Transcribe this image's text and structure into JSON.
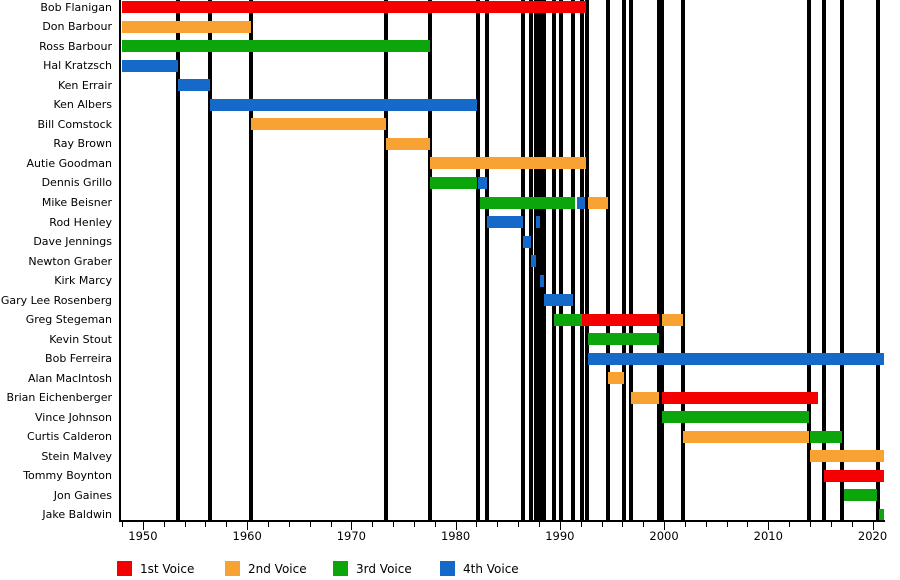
{
  "chart_data": {
    "type": "timeline",
    "description": "Band members timeline: tenure bars per member, colored by voice part, with vertical lines marking lineup changes",
    "x_axis": {
      "unit": "year",
      "plot_start": 1947.8,
      "plot_end": 2021.1,
      "major_ticks": [
        1950,
        1960,
        1970,
        1980,
        1990,
        2000,
        2010,
        2020
      ],
      "minor_tick_start": 1948,
      "minor_tick_end": 2020,
      "minor_tick_step": 2
    },
    "voice_colors": {
      "1st": "#f40000",
      "2nd": "#f7a233",
      "3rd": "#0ca60c",
      "4th": "#1569c8"
    },
    "legend": [
      {
        "label": "1st Voice",
        "voice": "1st",
        "color": "#f40000"
      },
      {
        "label": "2nd Voice",
        "voice": "2nd",
        "color": "#f7a233"
      },
      {
        "label": "3rd Voice",
        "voice": "3rd",
        "color": "#0ca60c"
      },
      {
        "label": "4th Voice",
        "voice": "4th",
        "color": "#1569c8"
      }
    ],
    "members": [
      {
        "name": "Bob Flanigan",
        "stints": [
          {
            "voice": "1st",
            "from": 1948,
            "to": 1992.5
          }
        ]
      },
      {
        "name": "Don Barbour",
        "stints": [
          {
            "voice": "2nd",
            "from": 1948,
            "to": 1960.4
          }
        ]
      },
      {
        "name": "Ross Barbour",
        "stints": [
          {
            "voice": "3rd",
            "from": 1948,
            "to": 1977.5
          }
        ]
      },
      {
        "name": "Hal Kratzsch",
        "stints": [
          {
            "voice": "4th",
            "from": 1948,
            "to": 1953.4
          }
        ]
      },
      {
        "name": "Ken Errair",
        "stints": [
          {
            "voice": "4th",
            "from": 1953.4,
            "to": 1956.4
          }
        ]
      },
      {
        "name": "Ken Albers",
        "stints": [
          {
            "voice": "4th",
            "from": 1956.4,
            "to": 1982.1
          }
        ]
      },
      {
        "name": "Bill Comstock",
        "stints": [
          {
            "voice": "2nd",
            "from": 1960.4,
            "to": 1973.3
          }
        ]
      },
      {
        "name": "Ray Brown",
        "stints": [
          {
            "voice": "2nd",
            "from": 1973.3,
            "to": 1977.5
          }
        ]
      },
      {
        "name": "Autie Goodman",
        "stints": [
          {
            "voice": "2nd",
            "from": 1977.5,
            "to": 1992.5
          }
        ]
      },
      {
        "name": "Dennis Grillo",
        "stints": [
          {
            "voice": "3rd",
            "from": 1977.5,
            "to": 1982.1
          },
          {
            "voice": "4th",
            "from": 1982.1,
            "to": 1983.0
          }
        ]
      },
      {
        "name": "Mike Beisner",
        "stints": [
          {
            "voice": "3rd",
            "from": 1982.3,
            "to": 1991.5
          },
          {
            "voice": "4th",
            "from": 1991.6,
            "to": 1992.4
          },
          {
            "voice": "2nd",
            "from": 1992.7,
            "to": 1994.6
          }
        ]
      },
      {
        "name": "Rod Henley",
        "stints": [
          {
            "voice": "4th",
            "from": 1983.0,
            "to": 1986.5
          },
          {
            "voice": "4th",
            "from": 1987.7,
            "to": 1988.1
          }
        ]
      },
      {
        "name": "Dave Jennings",
        "stints": [
          {
            "voice": "4th",
            "from": 1986.5,
            "to": 1987.2
          }
        ]
      },
      {
        "name": "Newton Graber",
        "stints": [
          {
            "voice": "4th",
            "from": 1987.2,
            "to": 1987.7
          }
        ]
      },
      {
        "name": "Kirk Marcy",
        "stints": [
          {
            "voice": "4th",
            "from": 1988.1,
            "to": 1988.5
          }
        ]
      },
      {
        "name": "Gary Lee Rosenberg",
        "stints": [
          {
            "voice": "4th",
            "from": 1988.5,
            "to": 1991.3
          }
        ]
      },
      {
        "name": "Greg Stegeman",
        "stints": [
          {
            "voice": "3rd",
            "from": 1989.4,
            "to": 1992.1
          },
          {
            "voice": "1st",
            "from": 1992.1,
            "to": 1999.5
          },
          {
            "voice": "2nd",
            "from": 1999.8,
            "to": 2001.8
          }
        ]
      },
      {
        "name": "Kevin Stout",
        "stints": [
          {
            "voice": "3rd",
            "from": 1992.7,
            "to": 1999.5
          }
        ]
      },
      {
        "name": "Bob Ferreira",
        "stints": [
          {
            "voice": "4th",
            "from": 1992.7,
            "to": 2021.1
          }
        ]
      },
      {
        "name": "Alan MacIntosh",
        "stints": [
          {
            "voice": "2nd",
            "from": 1994.6,
            "to": 1996.2
          }
        ]
      },
      {
        "name": "Brian Eichenberger",
        "stints": [
          {
            "voice": "2nd",
            "from": 1996.8,
            "to": 1999.5
          },
          {
            "voice": "1st",
            "from": 1999.8,
            "to": 2014.8
          }
        ]
      },
      {
        "name": "Vince Johnson",
        "stints": [
          {
            "voice": "3rd",
            "from": 1999.8,
            "to": 2013.9
          }
        ]
      },
      {
        "name": "Curtis Calderon",
        "stints": [
          {
            "voice": "2nd",
            "from": 2001.8,
            "to": 2013.9
          },
          {
            "voice": "3rd",
            "from": 2014.0,
            "to": 2017.1
          }
        ]
      },
      {
        "name": "Stein Malvey",
        "stints": [
          {
            "voice": "2nd",
            "from": 2014.0,
            "to": 2021.1
          }
        ]
      },
      {
        "name": "Tommy Boynton",
        "stints": [
          {
            "voice": "1st",
            "from": 2015.3,
            "to": 2021.1
          }
        ]
      },
      {
        "name": "Jon Gaines",
        "stints": [
          {
            "voice": "3rd",
            "from": 2017.3,
            "to": 2020.4
          }
        ]
      },
      {
        "name": "Jake Baldwin",
        "stints": [
          {
            "voice": "3rd",
            "from": 2020.6,
            "to": 2021.1
          }
        ]
      }
    ],
    "change_lines": [
      1953.4,
      1956.4,
      1960.4,
      1973.3,
      1977.5,
      1982.1,
      1983.0,
      1986.5,
      1987.2,
      1987.7,
      1988.1,
      1988.5,
      1989.4,
      1990.1,
      1991.3,
      1992.1,
      1992.6,
      1994.6,
      1996.2,
      1996.8,
      1999.5,
      1999.8,
      2001.8,
      2013.9,
      2015.3,
      2017.1,
      2020.5
    ]
  }
}
